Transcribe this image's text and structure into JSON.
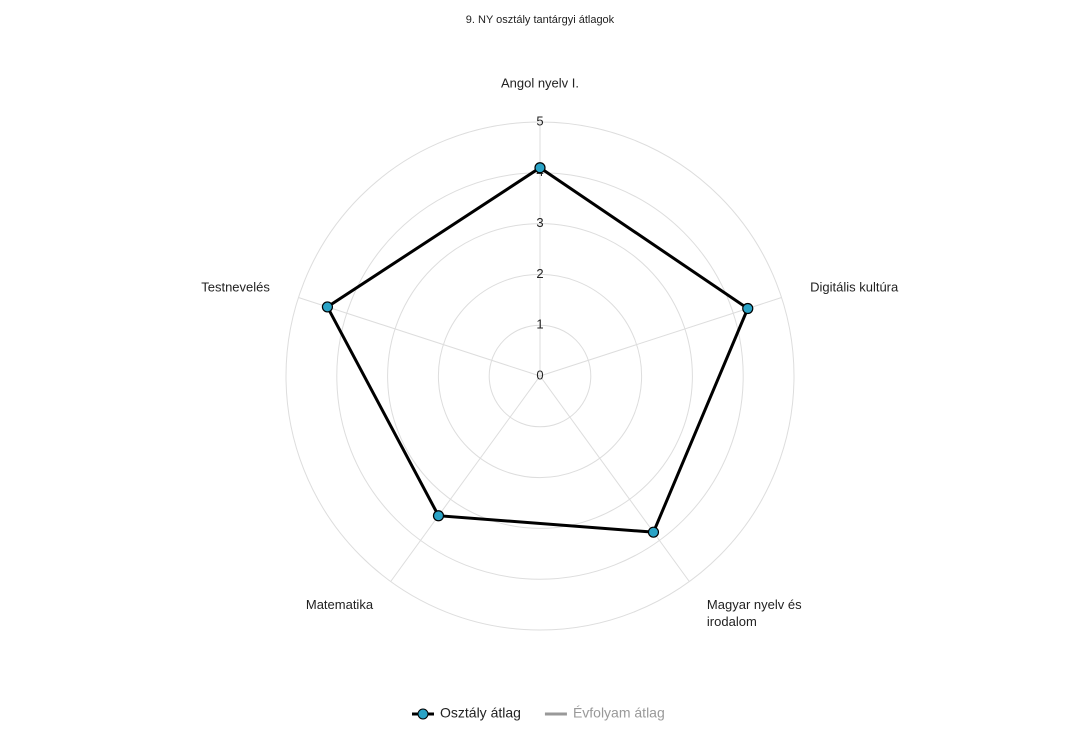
{
  "chart_data": {
    "type": "radar",
    "title": "9. NY osztály tantárgyi átlagok",
    "categories": [
      "Angol nyelv I.",
      "Digitális kultúra",
      "Magyar nyelv és irodalom",
      "Matematika",
      "Testnevelés"
    ],
    "series": [
      {
        "name": "Osztály átlag",
        "color": "#000000",
        "marker_color": "#2aa3c6",
        "values": [
          4.1,
          4.3,
          3.8,
          3.4,
          4.4
        ]
      },
      {
        "name": "Évfolyam átlag",
        "color": "#999999",
        "hidden": true,
        "values": [
          null,
          null,
          null,
          null,
          null
        ]
      }
    ],
    "ylim": [
      0,
      5
    ],
    "yticks": [
      0,
      1,
      2,
      3,
      4,
      5
    ],
    "grid": true,
    "legend": "bottom"
  }
}
